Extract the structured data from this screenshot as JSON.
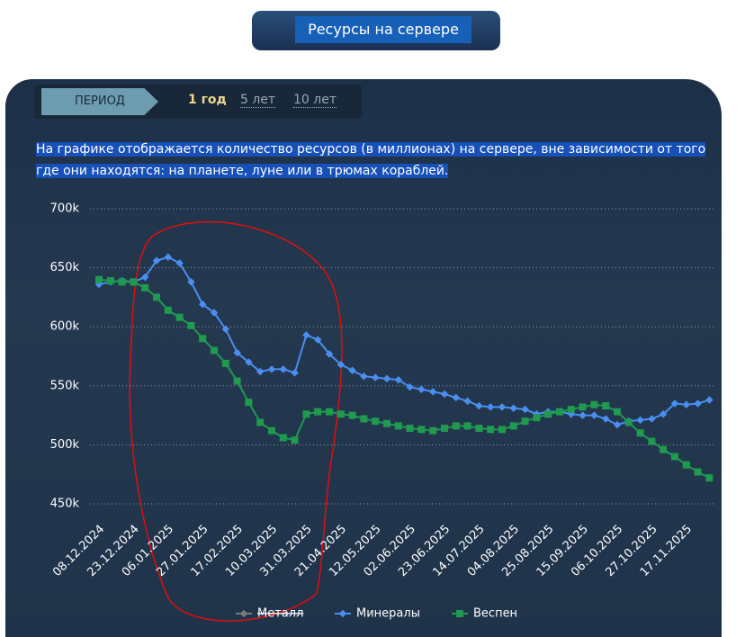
{
  "header": {
    "title": "Ресурсы на сервере"
  },
  "period": {
    "label": "ПЕРИОД",
    "options": [
      "1 год",
      "5 лет",
      "10 лет"
    ],
    "active": 0
  },
  "description": "На графике отображается количество ресурсов (в миллионах) на сервере, вне зависимости от того где они находятся: на планете, луне или в трюмах кораблей.",
  "chart_data": {
    "type": "line",
    "categories": [
      "08.12.2024",
      null,
      null,
      "23.12.2024",
      null,
      null,
      "06.01.2025",
      null,
      null,
      "27.01.2025",
      null,
      null,
      "17.02.2025",
      null,
      null,
      "10.03.2025",
      null,
      null,
      "31.03.2025",
      null,
      null,
      "21.04.2025",
      null,
      null,
      "12.05.2025",
      null,
      null,
      "02.06.2025",
      null,
      null,
      "23.06.2025",
      null,
      null,
      "14.07.2025",
      null,
      null,
      "04.08.2025",
      null,
      null,
      "25.08.2025",
      null,
      null,
      "15.09.2025",
      null,
      null,
      "06.10.2025",
      null,
      null,
      "27.10.2025",
      null,
      null,
      "17.11.2025",
      null,
      null
    ],
    "series": [
      {
        "name": "Металл",
        "color": "#9a9a9a",
        "hidden": true,
        "values": [
          null,
          null,
          null,
          null,
          null,
          null,
          null,
          null,
          null,
          null,
          null,
          null,
          null,
          null,
          null,
          null,
          null,
          null,
          null,
          null,
          null,
          null,
          null,
          null,
          null,
          null,
          null,
          null,
          null,
          null,
          null,
          null,
          null,
          null,
          null,
          null,
          null,
          null,
          null,
          null,
          null,
          null,
          null,
          null,
          null,
          null,
          null,
          null,
          null,
          null,
          null,
          null,
          null,
          null
        ]
      },
      {
        "name": "Минералы",
        "color": "#4a8ef0",
        "values": [
          636,
          638,
          639,
          638,
          642,
          656,
          659,
          654,
          638,
          619,
          612,
          598,
          578,
          570,
          562,
          564,
          564,
          561,
          593,
          589,
          577,
          568,
          563,
          558,
          557,
          556,
          555,
          549,
          547,
          545,
          543,
          540,
          537,
          533,
          532,
          532,
          531,
          530,
          526,
          528,
          528,
          526,
          525,
          525,
          522,
          517,
          520,
          521,
          522,
          526,
          535,
          534,
          535,
          538
        ]
      },
      {
        "name": "Веспен",
        "color": "#1f9a4e",
        "values": [
          640,
          639,
          638,
          638,
          633,
          625,
          614,
          608,
          601,
          590,
          580,
          569,
          554,
          536,
          519,
          512,
          506,
          504,
          526,
          528,
          528,
          526,
          525,
          522,
          520,
          518,
          516,
          514,
          513,
          512,
          514,
          516,
          516,
          514,
          513,
          513,
          516,
          520,
          523,
          526,
          528,
          530,
          532,
          534,
          533,
          528,
          519,
          510,
          503,
          496,
          490,
          483,
          477,
          472
        ]
      }
    ],
    "ylim": [
      440,
      710
    ],
    "yticks": [
      {
        "value": 450,
        "label": "450k"
      },
      {
        "value": 500,
        "label": "500k"
      },
      {
        "value": 550,
        "label": "550k"
      },
      {
        "value": 600,
        "label": "600k"
      },
      {
        "value": 650,
        "label": "650k"
      },
      {
        "value": 700,
        "label": "700k"
      }
    ],
    "grid": true
  }
}
